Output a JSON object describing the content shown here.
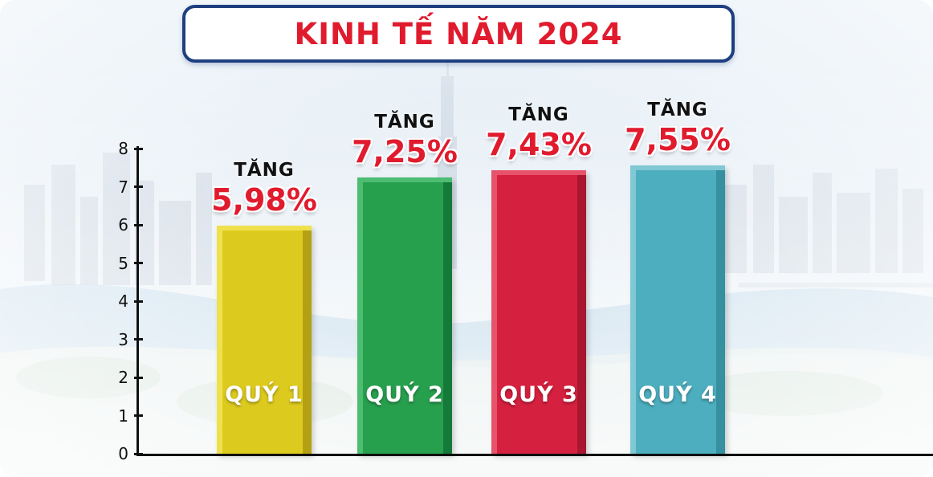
{
  "title": "KINH TẾ NĂM 2024",
  "chart_data": {
    "type": "bar",
    "title": "KINH TẾ NĂM 2024",
    "categories": [
      "QUÝ 1",
      "QUÝ 2",
      "QUÝ 3",
      "QUÝ 4"
    ],
    "values": [
      5.98,
      7.25,
      7.43,
      7.55
    ],
    "value_labels": [
      "5,98%",
      "7,25%",
      "7,43%",
      "7,55%"
    ],
    "increase_label": "TĂNG",
    "xlabel": "",
    "ylabel": "",
    "ylim": [
      0,
      8
    ],
    "yticks": [
      0,
      1,
      2,
      3,
      4,
      5,
      6,
      7,
      8
    ],
    "grid": false,
    "legend": "none",
    "bar_colors": [
      {
        "main": "#ddca1e",
        "light": "#efe14e",
        "dark": "#b3a113"
      },
      {
        "main": "#27a04e",
        "light": "#4cbd71",
        "dark": "#157a39"
      },
      {
        "main": "#d6203f",
        "light": "#e6536b",
        "dark": "#a81630"
      },
      {
        "main": "#4daebf",
        "light": "#7fc8d4",
        "dark": "#35909f"
      }
    ]
  },
  "colors": {
    "title_text": "#e11b2e",
    "title_border": "#1e3f7f",
    "axis": "#111111",
    "value_text": "#e11b2e"
  }
}
